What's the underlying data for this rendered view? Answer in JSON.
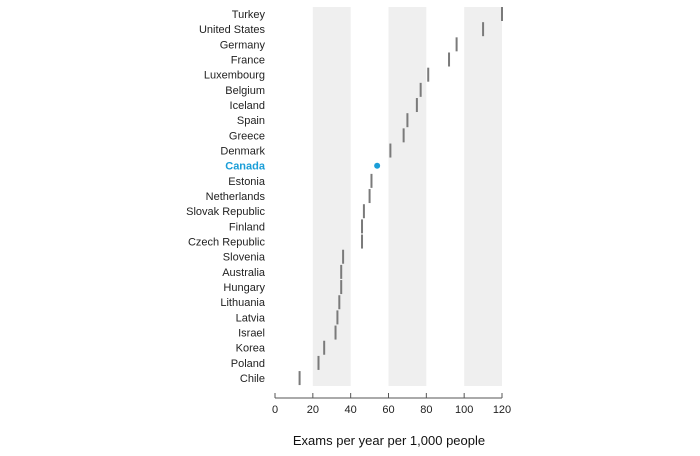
{
  "chart_data": {
    "type": "scatter",
    "title": "",
    "xlabel": "Exams per year per 1,000 people",
    "ylabel": "",
    "xlim": [
      0,
      120
    ],
    "xticks": [
      0,
      20,
      40,
      60,
      80,
      100,
      120
    ],
    "shaded_bands": [
      [
        20,
        40
      ],
      [
        60,
        80
      ],
      [
        100,
        120
      ]
    ],
    "highlight": "Canada",
    "colors": {
      "marker": "#7a7a7a",
      "highlight": "#1a9ed8",
      "band": "#efefef"
    },
    "categories": [
      "Turkey",
      "United States",
      "Germany",
      "France",
      "Luxembourg",
      "Belgium",
      "Iceland",
      "Spain",
      "Greece",
      "Denmark",
      "Canada",
      "Estonia",
      "Netherlands",
      "Slovak Republic",
      "Finland",
      "Czech Republic",
      "Slovenia",
      "Australia",
      "Hungary",
      "Lithuania",
      "Latvia",
      "Israel",
      "Korea",
      "Poland",
      "Chile"
    ],
    "values": [
      120,
      110,
      96,
      92,
      81,
      77,
      75,
      70,
      68,
      61,
      54,
      51,
      50,
      47,
      46,
      46,
      36,
      35,
      35,
      34,
      33,
      32,
      26,
      23,
      13
    ]
  }
}
